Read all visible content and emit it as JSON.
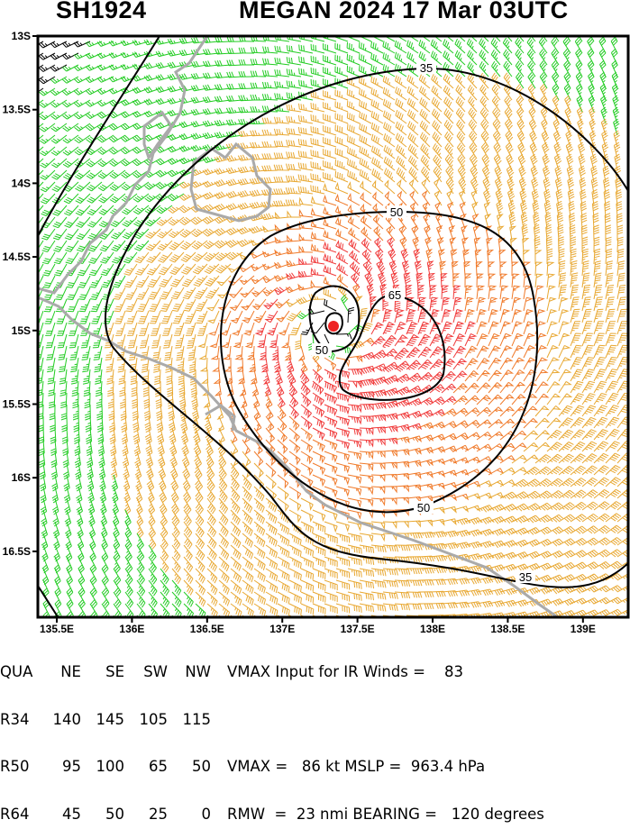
{
  "header": {
    "storm_id": "SH1924",
    "storm_info": "MEGAN 2024 17 Mar 03UTC"
  },
  "axes": {
    "lat_ticks": [
      "13S",
      "13.5S",
      "14S",
      "14.5S",
      "15S",
      "15.5S",
      "16S",
      "16.5S"
    ],
    "lon_ticks": [
      "135.5E",
      "136E",
      "136.5E",
      "137E",
      "137.5E",
      "138E",
      "138.5E",
      "139E"
    ]
  },
  "contours": {
    "labels": [
      "35",
      "50",
      "65",
      "50",
      "50",
      "35"
    ]
  },
  "colors": {
    "lt_25": "#000000",
    "25_35": "#22cc22",
    "35_50": "#e8a832",
    "50_65": "#f07a2a",
    "ge_65": "#f03a3a",
    "contour": "#000000",
    "coast": "#aaaaaa",
    "center": "#ee2222"
  },
  "chart_data": {
    "type": "wind-barb-map",
    "center": {
      "lat": -14.97,
      "lon": 137.34
    },
    "vmax_kt": 86,
    "rmw_nmi": 23,
    "contour_levels_kt": [
      35,
      50,
      65
    ],
    "xlim": [
      "135.37E",
      "139.3E"
    ],
    "ylim": [
      "13S",
      "16.95S"
    ]
  },
  "table": {
    "header": [
      "QUA",
      "NE",
      "SE",
      "SW",
      "NW"
    ],
    "rows": [
      {
        "label": "R34",
        "values": [
          "140",
          "145",
          "105",
          "115"
        ]
      },
      {
        "label": "R50",
        "values": [
          "95",
          "100",
          "65",
          "50"
        ]
      },
      {
        "label": "R64",
        "values": [
          "45",
          "50",
          "25",
          "0"
        ]
      }
    ],
    "notes": [
      "VMAX Input for IR Winds =    83",
      "",
      "VMAX =   86 kt MSLP =  963.4 hPa",
      "RMW  =  23 nmi BEARING =   120 degrees"
    ]
  }
}
